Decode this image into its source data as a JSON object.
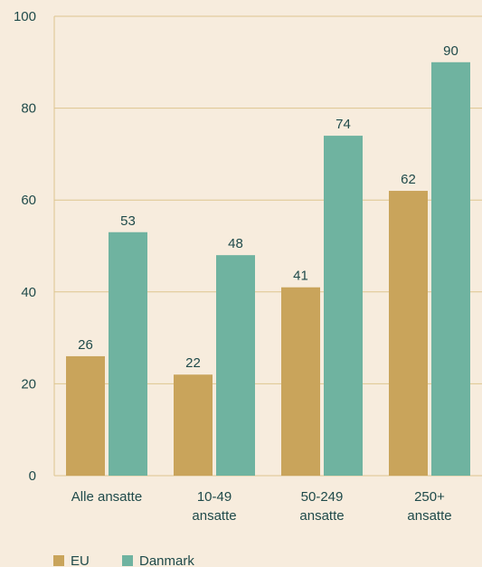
{
  "chart_data": {
    "type": "bar",
    "title": "",
    "xlabel": "",
    "ylabel": "",
    "ylim": [
      0,
      100
    ],
    "yticks": [
      0,
      20,
      40,
      60,
      80,
      100
    ],
    "grid": true,
    "legend_position": "bottom-left",
    "categories": [
      [
        "Alle ansatte"
      ],
      [
        "10-49",
        "ansatte"
      ],
      [
        "50-249",
        "ansatte"
      ],
      [
        "250+",
        "ansatte"
      ]
    ],
    "series": [
      {
        "name": "EU",
        "values": [
          26,
          22,
          41,
          62
        ],
        "color": "#c9a45b"
      },
      {
        "name": "Danmark",
        "values": [
          53,
          48,
          74,
          90
        ],
        "color": "#6fb3a0"
      }
    ],
    "colors": {
      "background": "#f7ecdd",
      "gridline": "#ddc58f",
      "text": "#1f4a4a"
    }
  }
}
